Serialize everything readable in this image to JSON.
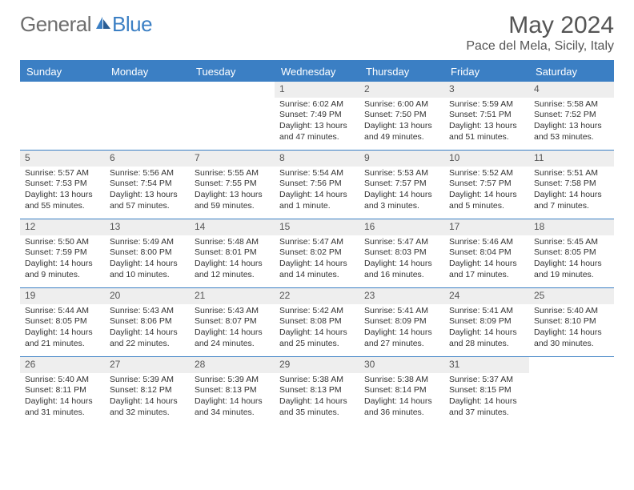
{
  "brand": {
    "word1": "General",
    "word2": "Blue"
  },
  "title": "May 2024",
  "location": "Pace del Mela, Sicily, Italy",
  "colors": {
    "header_bg": "#3b7fc4",
    "header_text": "#ffffff",
    "daynum_bg": "#eeeeee",
    "text": "#333333",
    "title_color": "#555555"
  },
  "columns": [
    "Sunday",
    "Monday",
    "Tuesday",
    "Wednesday",
    "Thursday",
    "Friday",
    "Saturday"
  ],
  "weeks": [
    [
      {
        "day": "",
        "sunrise": "",
        "sunset": "",
        "daylight": ""
      },
      {
        "day": "",
        "sunrise": "",
        "sunset": "",
        "daylight": ""
      },
      {
        "day": "",
        "sunrise": "",
        "sunset": "",
        "daylight": ""
      },
      {
        "day": "1",
        "sunrise": "Sunrise: 6:02 AM",
        "sunset": "Sunset: 7:49 PM",
        "daylight": "Daylight: 13 hours and 47 minutes."
      },
      {
        "day": "2",
        "sunrise": "Sunrise: 6:00 AM",
        "sunset": "Sunset: 7:50 PM",
        "daylight": "Daylight: 13 hours and 49 minutes."
      },
      {
        "day": "3",
        "sunrise": "Sunrise: 5:59 AM",
        "sunset": "Sunset: 7:51 PM",
        "daylight": "Daylight: 13 hours and 51 minutes."
      },
      {
        "day": "4",
        "sunrise": "Sunrise: 5:58 AM",
        "sunset": "Sunset: 7:52 PM",
        "daylight": "Daylight: 13 hours and 53 minutes."
      }
    ],
    [
      {
        "day": "5",
        "sunrise": "Sunrise: 5:57 AM",
        "sunset": "Sunset: 7:53 PM",
        "daylight": "Daylight: 13 hours and 55 minutes."
      },
      {
        "day": "6",
        "sunrise": "Sunrise: 5:56 AM",
        "sunset": "Sunset: 7:54 PM",
        "daylight": "Daylight: 13 hours and 57 minutes."
      },
      {
        "day": "7",
        "sunrise": "Sunrise: 5:55 AM",
        "sunset": "Sunset: 7:55 PM",
        "daylight": "Daylight: 13 hours and 59 minutes."
      },
      {
        "day": "8",
        "sunrise": "Sunrise: 5:54 AM",
        "sunset": "Sunset: 7:56 PM",
        "daylight": "Daylight: 14 hours and 1 minute."
      },
      {
        "day": "9",
        "sunrise": "Sunrise: 5:53 AM",
        "sunset": "Sunset: 7:57 PM",
        "daylight": "Daylight: 14 hours and 3 minutes."
      },
      {
        "day": "10",
        "sunrise": "Sunrise: 5:52 AM",
        "sunset": "Sunset: 7:57 PM",
        "daylight": "Daylight: 14 hours and 5 minutes."
      },
      {
        "day": "11",
        "sunrise": "Sunrise: 5:51 AM",
        "sunset": "Sunset: 7:58 PM",
        "daylight": "Daylight: 14 hours and 7 minutes."
      }
    ],
    [
      {
        "day": "12",
        "sunrise": "Sunrise: 5:50 AM",
        "sunset": "Sunset: 7:59 PM",
        "daylight": "Daylight: 14 hours and 9 minutes."
      },
      {
        "day": "13",
        "sunrise": "Sunrise: 5:49 AM",
        "sunset": "Sunset: 8:00 PM",
        "daylight": "Daylight: 14 hours and 10 minutes."
      },
      {
        "day": "14",
        "sunrise": "Sunrise: 5:48 AM",
        "sunset": "Sunset: 8:01 PM",
        "daylight": "Daylight: 14 hours and 12 minutes."
      },
      {
        "day": "15",
        "sunrise": "Sunrise: 5:47 AM",
        "sunset": "Sunset: 8:02 PM",
        "daylight": "Daylight: 14 hours and 14 minutes."
      },
      {
        "day": "16",
        "sunrise": "Sunrise: 5:47 AM",
        "sunset": "Sunset: 8:03 PM",
        "daylight": "Daylight: 14 hours and 16 minutes."
      },
      {
        "day": "17",
        "sunrise": "Sunrise: 5:46 AM",
        "sunset": "Sunset: 8:04 PM",
        "daylight": "Daylight: 14 hours and 17 minutes."
      },
      {
        "day": "18",
        "sunrise": "Sunrise: 5:45 AM",
        "sunset": "Sunset: 8:05 PM",
        "daylight": "Daylight: 14 hours and 19 minutes."
      }
    ],
    [
      {
        "day": "19",
        "sunrise": "Sunrise: 5:44 AM",
        "sunset": "Sunset: 8:05 PM",
        "daylight": "Daylight: 14 hours and 21 minutes."
      },
      {
        "day": "20",
        "sunrise": "Sunrise: 5:43 AM",
        "sunset": "Sunset: 8:06 PM",
        "daylight": "Daylight: 14 hours and 22 minutes."
      },
      {
        "day": "21",
        "sunrise": "Sunrise: 5:43 AM",
        "sunset": "Sunset: 8:07 PM",
        "daylight": "Daylight: 14 hours and 24 minutes."
      },
      {
        "day": "22",
        "sunrise": "Sunrise: 5:42 AM",
        "sunset": "Sunset: 8:08 PM",
        "daylight": "Daylight: 14 hours and 25 minutes."
      },
      {
        "day": "23",
        "sunrise": "Sunrise: 5:41 AM",
        "sunset": "Sunset: 8:09 PM",
        "daylight": "Daylight: 14 hours and 27 minutes."
      },
      {
        "day": "24",
        "sunrise": "Sunrise: 5:41 AM",
        "sunset": "Sunset: 8:09 PM",
        "daylight": "Daylight: 14 hours and 28 minutes."
      },
      {
        "day": "25",
        "sunrise": "Sunrise: 5:40 AM",
        "sunset": "Sunset: 8:10 PM",
        "daylight": "Daylight: 14 hours and 30 minutes."
      }
    ],
    [
      {
        "day": "26",
        "sunrise": "Sunrise: 5:40 AM",
        "sunset": "Sunset: 8:11 PM",
        "daylight": "Daylight: 14 hours and 31 minutes."
      },
      {
        "day": "27",
        "sunrise": "Sunrise: 5:39 AM",
        "sunset": "Sunset: 8:12 PM",
        "daylight": "Daylight: 14 hours and 32 minutes."
      },
      {
        "day": "28",
        "sunrise": "Sunrise: 5:39 AM",
        "sunset": "Sunset: 8:13 PM",
        "daylight": "Daylight: 14 hours and 34 minutes."
      },
      {
        "day": "29",
        "sunrise": "Sunrise: 5:38 AM",
        "sunset": "Sunset: 8:13 PM",
        "daylight": "Daylight: 14 hours and 35 minutes."
      },
      {
        "day": "30",
        "sunrise": "Sunrise: 5:38 AM",
        "sunset": "Sunset: 8:14 PM",
        "daylight": "Daylight: 14 hours and 36 minutes."
      },
      {
        "day": "31",
        "sunrise": "Sunrise: 5:37 AM",
        "sunset": "Sunset: 8:15 PM",
        "daylight": "Daylight: 14 hours and 37 minutes."
      },
      {
        "day": "",
        "sunrise": "",
        "sunset": "",
        "daylight": ""
      }
    ]
  ]
}
